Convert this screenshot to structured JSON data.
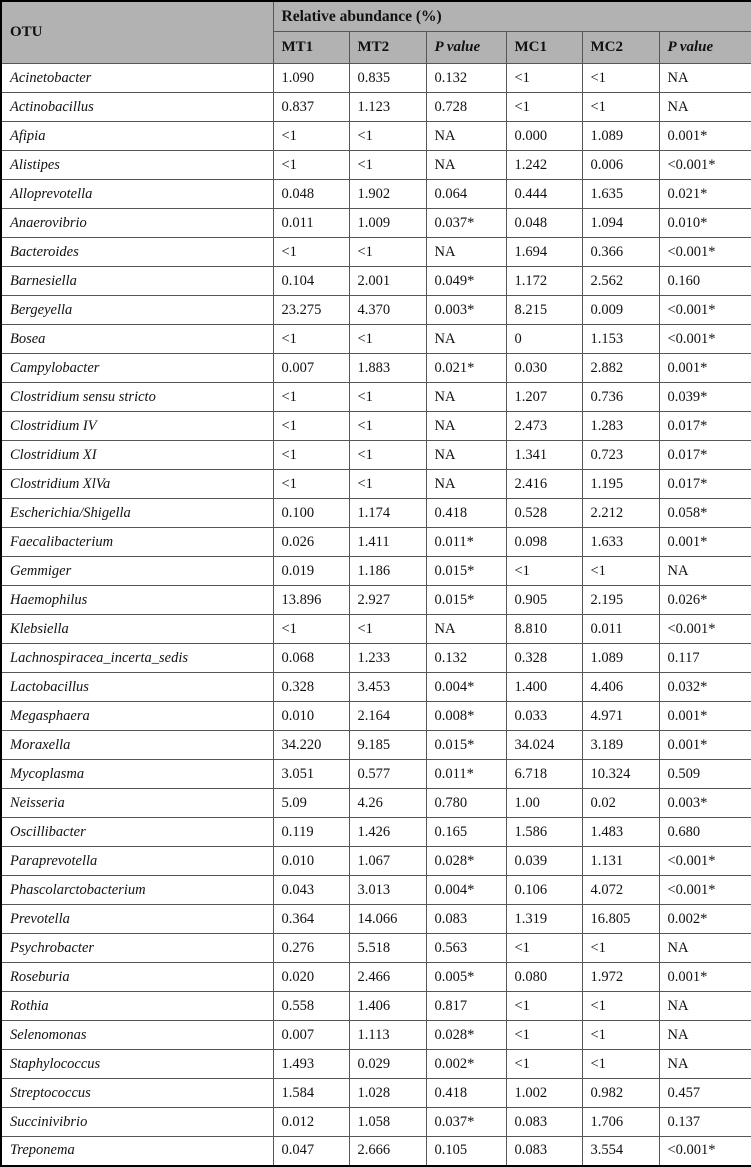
{
  "table": {
    "group_header": "Relative abundance (%)",
    "otu_header": "OTU",
    "columns": [
      "MT1",
      "MT2",
      "P value",
      "MC1",
      "MC2",
      "P value"
    ],
    "rows": [
      {
        "otu": "Acinetobacter",
        "values": [
          "1.090",
          "0.835",
          "0.132",
          "<1",
          "<1",
          "NA"
        ]
      },
      {
        "otu": "Actinobacillus",
        "values": [
          "0.837",
          "1.123",
          "0.728",
          "<1",
          "<1",
          "NA"
        ]
      },
      {
        "otu": "Afipia",
        "values": [
          "<1",
          "<1",
          "NA",
          "0.000",
          "1.089",
          "0.001*"
        ]
      },
      {
        "otu": "Alistipes",
        "values": [
          "<1",
          "<1",
          "NA",
          "1.242",
          "0.006",
          "<0.001*"
        ]
      },
      {
        "otu": "Alloprevotella",
        "values": [
          "0.048",
          "1.902",
          "0.064",
          "0.444",
          "1.635",
          "0.021*"
        ]
      },
      {
        "otu": "Anaerovibrio",
        "values": [
          "0.011",
          "1.009",
          "0.037*",
          "0.048",
          "1.094",
          "0.010*"
        ]
      },
      {
        "otu": "Bacteroides",
        "values": [
          "<1",
          "<1",
          "NA",
          "1.694",
          "0.366",
          "<0.001*"
        ]
      },
      {
        "otu": "Barnesiella",
        "values": [
          "0.104",
          "2.001",
          "0.049*",
          "1.172",
          "2.562",
          "0.160"
        ]
      },
      {
        "otu": "Bergeyella",
        "values": [
          "23.275",
          "4.370",
          "0.003*",
          "8.215",
          "0.009",
          "<0.001*"
        ]
      },
      {
        "otu": "Bosea",
        "values": [
          "<1",
          "<1",
          "NA",
          "0",
          "1.153",
          "<0.001*"
        ]
      },
      {
        "otu": "Campylobacter",
        "values": [
          "0.007",
          "1.883",
          "0.021*",
          "0.030",
          "2.882",
          "0.001*"
        ]
      },
      {
        "otu": "Clostridium sensu stricto",
        "values": [
          "<1",
          "<1",
          "NA",
          "1.207",
          "0.736",
          "0.039*"
        ]
      },
      {
        "otu": "Clostridium IV",
        "values": [
          "<1",
          "<1",
          "NA",
          "2.473",
          "1.283",
          "0.017*"
        ]
      },
      {
        "otu": "Clostridium XI",
        "values": [
          "<1",
          "<1",
          "NA",
          "1.341",
          "0.723",
          "0.017*"
        ]
      },
      {
        "otu": "Clostridium XlVa",
        "values": [
          "<1",
          "<1",
          "NA",
          "2.416",
          "1.195",
          "0.017*"
        ]
      },
      {
        "otu": "Escherichia/Shigella",
        "values": [
          "0.100",
          "1.174",
          "0.418",
          "0.528",
          "2.212",
          "0.058*"
        ]
      },
      {
        "otu": "Faecalibacterium",
        "values": [
          "0.026",
          "1.411",
          "0.011*",
          "0.098",
          "1.633",
          "0.001*"
        ]
      },
      {
        "otu": "Gemmiger",
        "values": [
          "0.019",
          "1.186",
          "0.015*",
          "<1",
          "<1",
          "NA"
        ]
      },
      {
        "otu": "Haemophilus",
        "values": [
          "13.896",
          "2.927",
          "0.015*",
          "0.905",
          "2.195",
          "0.026*"
        ]
      },
      {
        "otu": "Klebsiella",
        "values": [
          "<1",
          "<1",
          "NA",
          "8.810",
          "0.011",
          "<0.001*"
        ]
      },
      {
        "otu": "Lachnospiracea_incerta_sedis",
        "values": [
          "0.068",
          "1.233",
          "0.132",
          "0.328",
          "1.089",
          "0.117"
        ]
      },
      {
        "otu": "Lactobacillus",
        "values": [
          "0.328",
          "3.453",
          "0.004*",
          "1.400",
          "4.406",
          "0.032*"
        ]
      },
      {
        "otu": "Megasphaera",
        "values": [
          "0.010",
          "2.164",
          "0.008*",
          "0.033",
          "4.971",
          "0.001*"
        ]
      },
      {
        "otu": "Moraxella",
        "values": [
          "34.220",
          "9.185",
          "0.015*",
          "34.024",
          "3.189",
          "0.001*"
        ]
      },
      {
        "otu": "Mycoplasma",
        "values": [
          "3.051",
          "0.577",
          "0.011*",
          "6.718",
          "10.324",
          "0.509"
        ]
      },
      {
        "otu": "Neisseria",
        "values": [
          "5.09",
          "4.26",
          "0.780",
          "1.00",
          "0.02",
          "0.003*"
        ]
      },
      {
        "otu": "Oscillibacter",
        "values": [
          "0.119",
          "1.426",
          "0.165",
          "1.586",
          "1.483",
          "0.680"
        ]
      },
      {
        "otu": "Paraprevotella",
        "values": [
          "0.010",
          "1.067",
          "0.028*",
          "0.039",
          "1.131",
          "<0.001*"
        ]
      },
      {
        "otu": "Phascolarctobacterium",
        "values": [
          "0.043",
          "3.013",
          "0.004*",
          "0.106",
          "4.072",
          "<0.001*"
        ]
      },
      {
        "otu": "Prevotella",
        "values": [
          "0.364",
          "14.066",
          "0.083",
          "1.319",
          "16.805",
          "0.002*"
        ]
      },
      {
        "otu": "Psychrobacter",
        "values": [
          "0.276",
          "5.518",
          "0.563",
          "<1",
          "<1",
          "NA"
        ]
      },
      {
        "otu": "Roseburia",
        "values": [
          "0.020",
          "2.466",
          "0.005*",
          "0.080",
          "1.972",
          "0.001*"
        ]
      },
      {
        "otu": "Rothia",
        "values": [
          "0.558",
          "1.406",
          "0.817",
          "<1",
          "<1",
          "NA"
        ]
      },
      {
        "otu": "Selenomonas",
        "values": [
          "0.007",
          "1.113",
          "0.028*",
          "<1",
          "<1",
          "NA"
        ]
      },
      {
        "otu": "Staphylococcus",
        "values": [
          "1.493",
          "0.029",
          "0.002*",
          "<1",
          "<1",
          "NA"
        ]
      },
      {
        "otu": "Streptococcus",
        "values": [
          "1.584",
          "1.028",
          "0.418",
          "1.002",
          "0.982",
          "0.457"
        ]
      },
      {
        "otu": "Succinivibrio",
        "values": [
          "0.012",
          "1.058",
          "0.037*",
          "0.083",
          "1.706",
          "0.137"
        ]
      },
      {
        "otu": "Treponema",
        "values": [
          "0.047",
          "2.666",
          "0.105",
          "0.083",
          "3.554",
          "<0.001*"
        ]
      }
    ]
  },
  "colors": {
    "header_bg": "#b2b2b2",
    "outer_border": "#000000",
    "grid_line": "#565656",
    "text": "#111111"
  }
}
